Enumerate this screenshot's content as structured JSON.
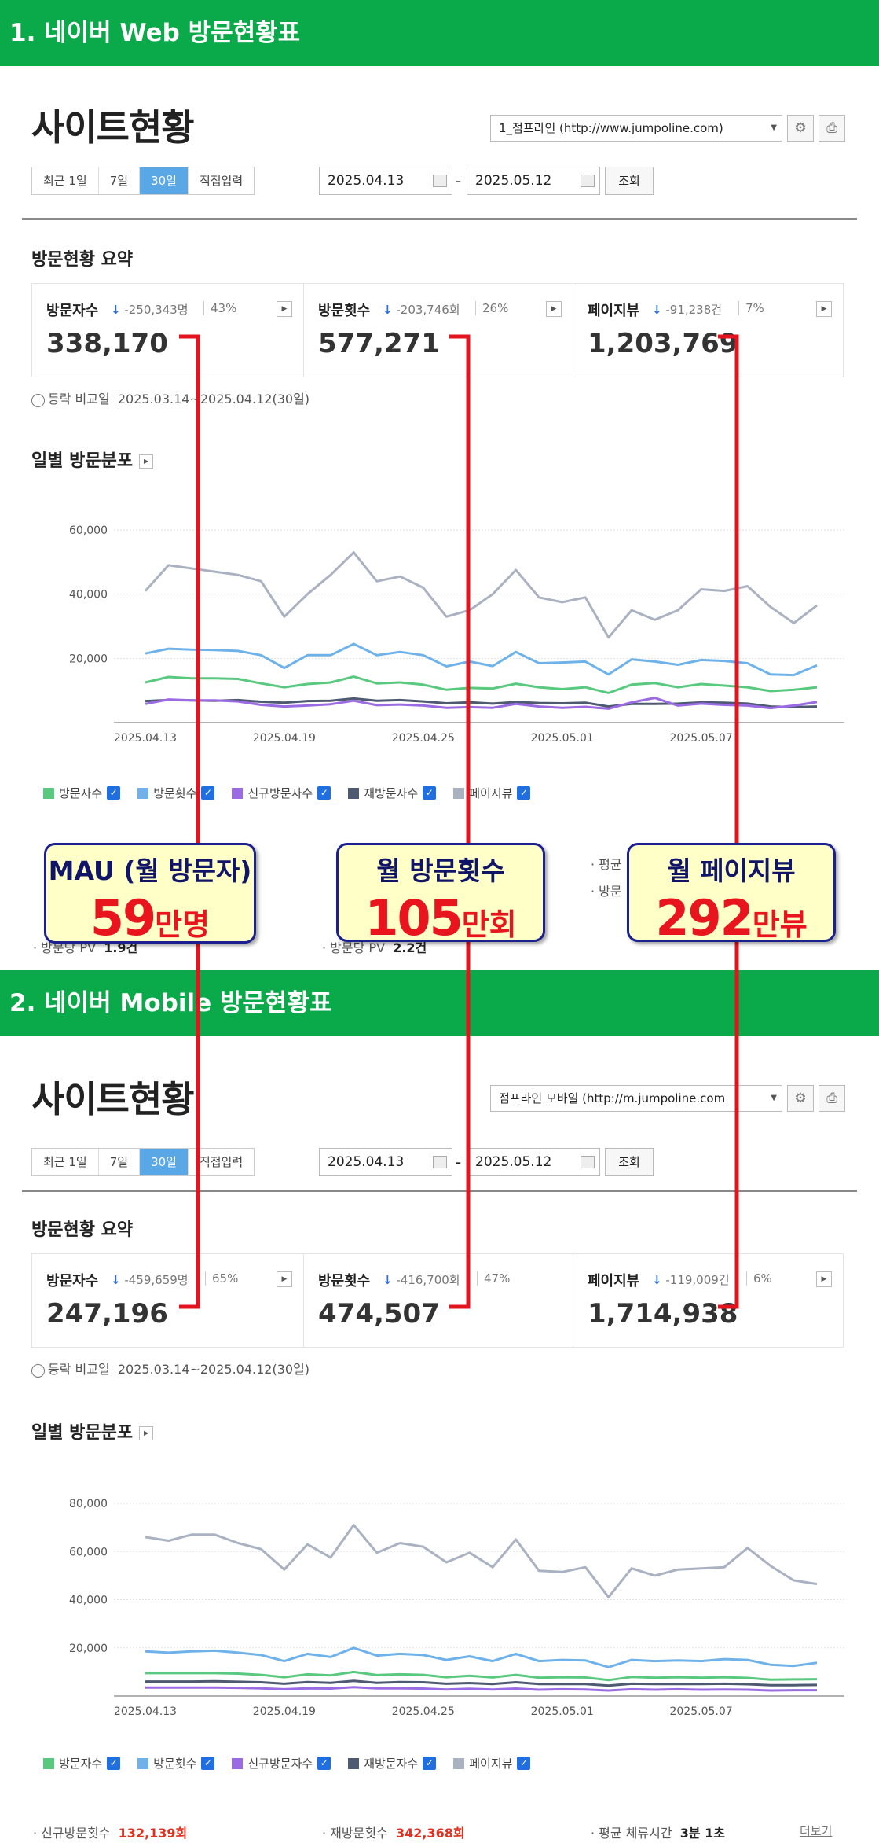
{
  "sections": [
    {
      "banner": "1. 네이버 Web 방문현황표",
      "site_title": "사이트현황",
      "site_select": "1_점프라인 (http://www.jumpoline.com)",
      "periods": [
        "최근 1일",
        "7일",
        "30일",
        "직접입력"
      ],
      "active_period": "30일",
      "date_from": "2025.04.13",
      "date_to": "2025.05.12",
      "query_button": "조회",
      "summary_title": "방문현황 요약",
      "summary": [
        {
          "label": "방문자수",
          "delta": "-250,343명",
          "pct": "43%",
          "value": "338,170"
        },
        {
          "label": "방문횟수",
          "delta": "-203,746회",
          "pct": "26%",
          "value": "577,271"
        },
        {
          "label": "페이지뷰",
          "delta": "-91,238건",
          "pct": "7%",
          "value": "1,203,769"
        }
      ],
      "compare_label": "등락 비교일",
      "compare_range": "2025.03.14~2025.04.12(30일)",
      "chart_title": "일별 방문분포",
      "legend": [
        "방문자수",
        "방문횟수",
        "신규방문자수",
        "재방문자수",
        "페이지뷰"
      ],
      "stats_partial": {
        "pv_per_visitor_label": "방문당 PV",
        "pv_per_visitor": "1.9건",
        "pv_per_visit_label": "방문당 PV",
        "pv_per_visit": "2.2건",
        "avg_label": "평균",
        "visit_label": "방문"
      }
    },
    {
      "banner": "2. 네이버 Mobile 방문현황표",
      "site_title": "사이트현황",
      "site_select": "점프라인 모바일 (http://m.jumpoline.com",
      "periods": [
        "최근 1일",
        "7일",
        "30일",
        "직접입력"
      ],
      "active_period": "30일",
      "date_from": "2025.04.13",
      "date_to": "2025.05.12",
      "query_button": "조회",
      "summary_title": "방문현황 요약",
      "summary": [
        {
          "label": "방문자수",
          "delta": "-459,659명",
          "pct": "65%",
          "value": "247,196"
        },
        {
          "label": "방문횟수",
          "delta": "-416,700회",
          "pct": "47%",
          "value": "474,507"
        },
        {
          "label": "페이지뷰",
          "delta": "-119,009건",
          "pct": "6%",
          "value": "1,714,938"
        }
      ],
      "compare_label": "등락 비교일",
      "compare_range": "2025.03.14~2025.04.12(30일)",
      "chart_title": "일별 방문분포",
      "legend": [
        "방문자수",
        "방문횟수",
        "신규방문자수",
        "재방문자수",
        "페이지뷰"
      ],
      "bottom_stats": {
        "new_visits_label": "신규방문횟수",
        "new_visits": "132,139회",
        "return_visits_label": "재방문횟수",
        "return_visits": "342,368회",
        "avg_stay_label": "평균 체류시간",
        "avg_stay": "3분 1초",
        "more": "더보기"
      }
    }
  ],
  "callouts": [
    {
      "title": "MAU (월 방문자)",
      "value": "59",
      "unit": "만명"
    },
    {
      "title": "월 방문횟수",
      "value": "105",
      "unit": "만회"
    },
    {
      "title": "월 페이지뷰",
      "value": "292",
      "unit": "만뷰"
    }
  ],
  "colors": {
    "banner": "#0aa94a",
    "visitors": "#58c97f",
    "visits": "#6fb2ea",
    "new_visitors": "#9b6be3",
    "return_visitors": "#4e5a72",
    "pageviews": "#aab2c2",
    "connector": "#e3141e"
  },
  "chart_data": [
    {
      "type": "line",
      "x_ticks": [
        "2025.04.13",
        "2025.04.19",
        "2025.04.25",
        "2025.05.01",
        "2025.05.07"
      ],
      "ylim": [
        0,
        60000
      ],
      "y_ticks": [
        "60,000",
        "40,000",
        "20,000"
      ],
      "grid": true,
      "legend_position": "bottom",
      "series": [
        {
          "name": "페이지뷰",
          "values": [
            41000,
            49000,
            48000,
            47000,
            46000,
            44000,
            33000,
            40000,
            46000,
            53000,
            44000,
            45500,
            42000,
            33000,
            35000,
            40000,
            47500,
            39000,
            37500,
            39000,
            26500,
            35000,
            32000,
            35000,
            41500,
            41000,
            42500,
            36000,
            31000,
            36500
          ]
        },
        {
          "name": "방문횟수",
          "values": [
            21500,
            23000,
            22700,
            22600,
            22300,
            21000,
            17000,
            21000,
            21000,
            24500,
            21000,
            22000,
            21000,
            17500,
            19000,
            17600,
            22000,
            18500,
            18700,
            19000,
            15000,
            19700,
            19000,
            18000,
            19500,
            19200,
            18500,
            15000,
            14800,
            17800
          ]
        },
        {
          "name": "방문자수",
          "values": [
            12500,
            14200,
            13800,
            13800,
            13600,
            12200,
            11000,
            12000,
            12500,
            14300,
            12200,
            12500,
            11800,
            10200,
            10800,
            10600,
            12100,
            11000,
            10400,
            11000,
            9200,
            11800,
            12300,
            11000,
            12000,
            11500,
            11000,
            9800,
            10200,
            11000
          ]
        },
        {
          "name": "재방문자수",
          "values": [
            6700,
            7000,
            6900,
            6800,
            7000,
            6500,
            6200,
            6700,
            6800,
            7500,
            6800,
            7000,
            6600,
            6000,
            6300,
            5900,
            6400,
            6100,
            6000,
            6200,
            5000,
            5800,
            5800,
            5900,
            6300,
            6200,
            5900,
            5000,
            4800,
            5000
          ]
        },
        {
          "name": "신규방문자수",
          "values": [
            5800,
            7200,
            6900,
            6900,
            6600,
            5500,
            5000,
            5300,
            5700,
            6800,
            5400,
            5600,
            5300,
            4600,
            4800,
            4600,
            5800,
            5000,
            4600,
            4900,
            4300,
            6300,
            7700,
            5300,
            5900,
            5500,
            5300,
            4500,
            5300,
            6400
          ]
        }
      ]
    },
    {
      "type": "line",
      "x_ticks": [
        "2025.04.13",
        "2025.04.19",
        "2025.04.25",
        "2025.05.01",
        "2025.05.07"
      ],
      "ylim": [
        0,
        80000
      ],
      "y_ticks": [
        "80,000",
        "60,000",
        "40,000",
        "20,000"
      ],
      "grid": true,
      "legend_position": "bottom",
      "series": [
        {
          "name": "페이지뷰",
          "values": [
            66000,
            64500,
            67000,
            67000,
            63500,
            61000,
            52500,
            63000,
            57500,
            71000,
            59500,
            63500,
            62000,
            55500,
            59500,
            53500,
            65000,
            52000,
            51500,
            53500,
            41000,
            53000,
            50000,
            52500,
            53000,
            53500,
            61500,
            54000,
            48000,
            46500
          ]
        },
        {
          "name": "방문횟수",
          "values": [
            18500,
            18000,
            18500,
            18800,
            18000,
            17000,
            14500,
            17500,
            16200,
            20000,
            16800,
            17500,
            17000,
            15000,
            16500,
            14500,
            17500,
            14500,
            15000,
            14800,
            12000,
            15000,
            14500,
            14800,
            14500,
            15300,
            15000,
            13000,
            12500,
            13800
          ]
        },
        {
          "name": "방문자수",
          "values": [
            9500,
            9500,
            9500,
            9500,
            9300,
            8800,
            7800,
            9000,
            8600,
            10000,
            8700,
            9000,
            8800,
            7800,
            8400,
            7700,
            8800,
            7600,
            7800,
            7700,
            6600,
            7900,
            7600,
            7800,
            7600,
            7800,
            7500,
            6800,
            6900,
            7000
          ]
        },
        {
          "name": "재방문자수",
          "values": [
            6000,
            6000,
            6000,
            6100,
            5900,
            5700,
            5100,
            5800,
            5500,
            6300,
            5500,
            5800,
            5700,
            5100,
            5400,
            5000,
            5700,
            5000,
            5000,
            5000,
            4300,
            5100,
            5000,
            5000,
            5000,
            5100,
            4900,
            4500,
            4500,
            4600
          ]
        },
        {
          "name": "신규방문자수",
          "values": [
            3500,
            3500,
            3500,
            3500,
            3400,
            3200,
            2800,
            3200,
            3100,
            3700,
            3200,
            3200,
            3100,
            2700,
            3000,
            2700,
            3100,
            2600,
            2800,
            2700,
            2300,
            2800,
            2600,
            2800,
            2600,
            2700,
            2600,
            2300,
            2400,
            2400
          ]
        }
      ]
    }
  ]
}
